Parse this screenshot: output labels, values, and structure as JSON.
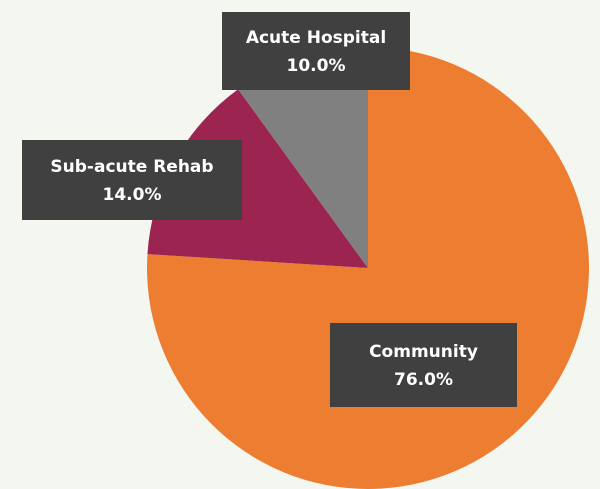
{
  "chart_data": {
    "type": "pie",
    "categories": [
      "Community",
      "Sub-acute Rehab",
      "Acute Hospital"
    ],
    "values": [
      76,
      14,
      10
    ],
    "value_labels": [
      "76.0%",
      "14.0%",
      "10.0%"
    ],
    "colors": [
      "#ed7d31",
      "#9b2550",
      "#808080"
    ]
  }
}
